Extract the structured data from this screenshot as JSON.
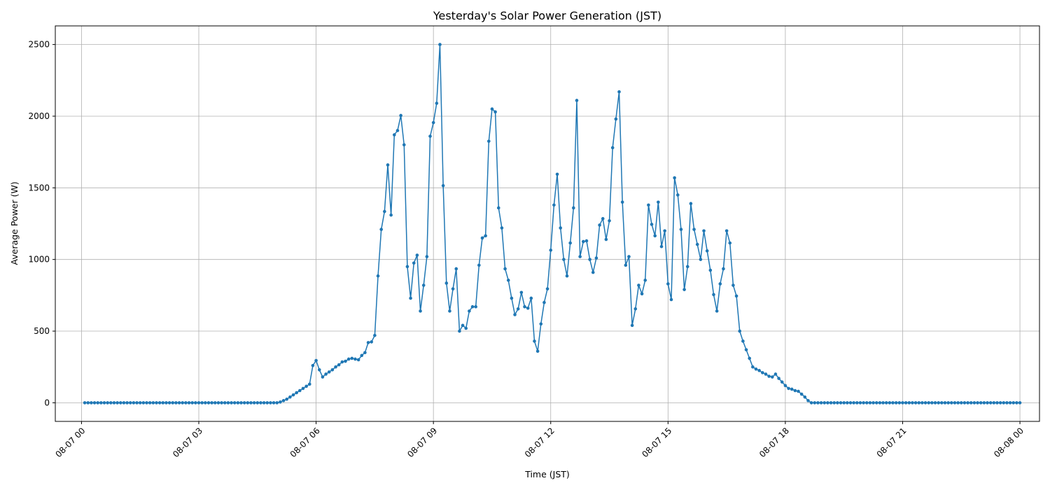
{
  "chart_data": {
    "type": "line",
    "title": "Yesterday's Solar Power Generation (JST)",
    "xlabel": "Time (JST)",
    "ylabel": "Average Power (W)",
    "x_start": "08-07 00:05",
    "x_step_minutes": 5,
    "xlim_hours": [
      -0.67,
      24.5
    ],
    "ylim": [
      -130,
      2630
    ],
    "x_ticks": [
      {
        "h": 0,
        "label": "08-07 00"
      },
      {
        "h": 3,
        "label": "08-07 03"
      },
      {
        "h": 6,
        "label": "08-07 06"
      },
      {
        "h": 9,
        "label": "08-07 09"
      },
      {
        "h": 12,
        "label": "08-07 12"
      },
      {
        "h": 15,
        "label": "08-07 15"
      },
      {
        "h": 18,
        "label": "08-07 18"
      },
      {
        "h": 21,
        "label": "08-07 21"
      },
      {
        "h": 24,
        "label": "08-08 00"
      }
    ],
    "y_ticks": [
      0,
      500,
      1000,
      1500,
      2000,
      2500
    ],
    "grid": true,
    "line_color": "#1f77b4",
    "series": [
      {
        "values": [
          0,
          0,
          0,
          0,
          0,
          0,
          0,
          0,
          0,
          0,
          0,
          0,
          0,
          0,
          0,
          0,
          0,
          0,
          0,
          0,
          0,
          0,
          0,
          0,
          0,
          0,
          0,
          0,
          0,
          0,
          0,
          0,
          0,
          0,
          0,
          0,
          0,
          0,
          0,
          0,
          0,
          0,
          0,
          0,
          0,
          0,
          0,
          0,
          0,
          0,
          0,
          0,
          0,
          0,
          0,
          0,
          0,
          0,
          0,
          0,
          5,
          15,
          25,
          40,
          55,
          70,
          85,
          100,
          115,
          130,
          260,
          295,
          230,
          180,
          200,
          215,
          230,
          250,
          265,
          285,
          290,
          305,
          310,
          305,
          300,
          330,
          350,
          420,
          425,
          470,
          885,
          1210,
          1335,
          1660,
          1310,
          1870,
          1900,
          2005,
          1800,
          950,
          730,
          975,
          1030,
          640,
          820,
          1020,
          1860,
          1955,
          2090,
          2500,
          1515,
          835,
          640,
          795,
          935,
          500,
          540,
          520,
          640,
          670,
          670,
          960,
          1150,
          1165,
          1825,
          2050,
          2030,
          1360,
          1220,
          935,
          855,
          730,
          615,
          655,
          770,
          670,
          660,
          730,
          430,
          360,
          550,
          700,
          795,
          1065,
          1380,
          1595,
          1220,
          1000,
          885,
          1115,
          1360,
          2110,
          1020,
          1125,
          1130,
          1000,
          910,
          1010,
          1240,
          1285,
          1140,
          1270,
          1780,
          1980,
          2170,
          1400,
          960,
          1020,
          540,
          655,
          820,
          760,
          855,
          1380,
          1245,
          1165,
          1400,
          1090,
          1200,
          830,
          720,
          1570,
          1450,
          1210,
          790,
          950,
          1390,
          1210,
          1105,
          1000,
          1200,
          1060,
          925,
          755,
          640,
          830,
          935,
          1200,
          1115,
          820,
          745,
          500,
          430,
          370,
          310,
          250,
          235,
          225,
          210,
          200,
          185,
          180,
          200,
          170,
          145,
          120,
          100,
          95,
          85,
          80,
          60,
          40,
          15,
          0,
          0,
          0,
          0,
          0,
          0,
          0,
          0,
          0,
          0,
          0,
          0,
          0,
          0,
          0,
          0,
          0,
          0,
          0,
          0,
          0,
          0,
          0,
          0,
          0,
          0,
          0,
          0,
          0,
          0,
          0,
          0,
          0,
          0,
          0,
          0,
          0,
          0,
          0,
          0,
          0,
          0,
          0,
          0,
          0,
          0,
          0,
          0,
          0,
          0,
          0,
          0,
          0,
          0,
          0,
          0,
          0,
          0,
          0,
          0,
          0,
          0,
          0,
          0,
          0
        ]
      }
    ]
  }
}
